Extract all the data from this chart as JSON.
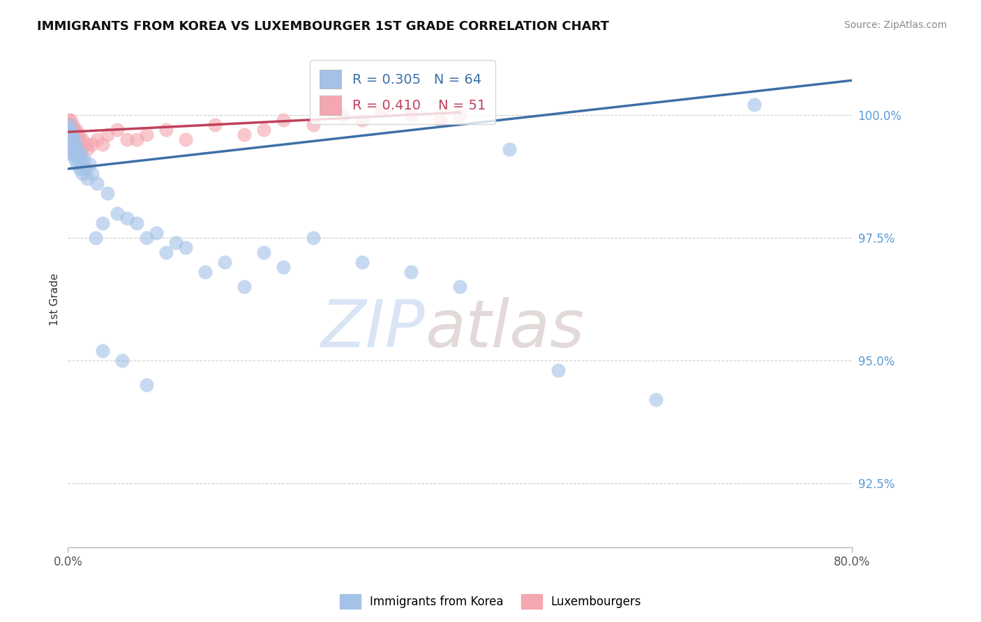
{
  "title": "IMMIGRANTS FROM KOREA VS LUXEMBOURGER 1ST GRADE CORRELATION CHART",
  "source_text": "Source: ZipAtlas.com",
  "ylabel": "1st Grade",
  "y_ticks": [
    92.5,
    95.0,
    97.5,
    100.0
  ],
  "y_tick_labels": [
    "92.5%",
    "95.0%",
    "97.5%",
    "100.0%"
  ],
  "x_min": 0.0,
  "x_max": 80.0,
  "y_min": 91.2,
  "y_max": 101.3,
  "korea_scatter_color": "#a4c2e8",
  "lux_scatter_color": "#f4a7b0",
  "korea_line_color": "#3d6fa8",
  "lux_line_color": "#c0405a",
  "legend_r_korea": "R = 0.305",
  "legend_n_korea": "N = 64",
  "legend_r_lux": "R = 0.410",
  "legend_n_lux": "N = 51",
  "legend_label_korea": "Immigrants from Korea",
  "legend_label_lux": "Luxembourgers",
  "korea_line_x0": 0.0,
  "korea_line_y0": 98.9,
  "korea_line_x1": 80.0,
  "korea_line_y1": 100.7,
  "lux_line_x0": 0.0,
  "lux_line_y0": 99.65,
  "lux_line_x1": 40.0,
  "lux_line_y1": 100.05,
  "korea_x": [
    0.05,
    0.08,
    0.1,
    0.12,
    0.15,
    0.18,
    0.2,
    0.22,
    0.25,
    0.28,
    0.3,
    0.35,
    0.38,
    0.4,
    0.42,
    0.45,
    0.5,
    0.55,
    0.58,
    0.6,
    0.65,
    0.7,
    0.75,
    0.8,
    0.9,
    1.0,
    1.1,
    1.2,
    1.3,
    1.4,
    1.5,
    1.6,
    1.8,
    2.0,
    2.2,
    2.5,
    2.8,
    3.0,
    3.5,
    4.0,
    5.0,
    6.0,
    7.0,
    8.0,
    9.0,
    10.0,
    11.0,
    12.0,
    14.0,
    16.0,
    18.0,
    20.0,
    22.0,
    25.0,
    30.0,
    35.0,
    40.0,
    50.0,
    60.0,
    70.0,
    3.5,
    5.5,
    8.0,
    45.0
  ],
  "korea_y": [
    99.5,
    99.3,
    99.7,
    99.4,
    99.8,
    99.5,
    99.6,
    99.4,
    99.7,
    99.5,
    99.3,
    99.6,
    99.2,
    99.5,
    99.4,
    99.3,
    99.6,
    99.4,
    99.2,
    99.5,
    99.3,
    99.1,
    99.4,
    99.2,
    99.0,
    99.3,
    99.1,
    98.9,
    99.2,
    99.0,
    98.8,
    99.1,
    98.9,
    98.7,
    99.0,
    98.8,
    97.5,
    98.6,
    97.8,
    98.4,
    98.0,
    97.9,
    97.8,
    97.5,
    97.6,
    97.2,
    97.4,
    97.3,
    96.8,
    97.0,
    96.5,
    97.2,
    96.9,
    97.5,
    97.0,
    96.8,
    96.5,
    94.8,
    94.2,
    100.2,
    95.2,
    95.0,
    94.5,
    99.3
  ],
  "lux_x": [
    0.05,
    0.08,
    0.1,
    0.12,
    0.15,
    0.18,
    0.2,
    0.22,
    0.25,
    0.28,
    0.3,
    0.32,
    0.35,
    0.38,
    0.4,
    0.45,
    0.5,
    0.55,
    0.6,
    0.65,
    0.7,
    0.8,
    0.9,
    1.0,
    1.1,
    1.2,
    1.3,
    1.5,
    1.8,
    2.0,
    2.5,
    3.0,
    4.0,
    5.0,
    6.0,
    8.0,
    10.0,
    12.0,
    15.0,
    18.0,
    20.0,
    22.0,
    25.0,
    28.0,
    30.0,
    32.0,
    35.0,
    38.0,
    40.0,
    3.5,
    7.0
  ],
  "lux_y": [
    99.6,
    99.4,
    99.8,
    99.6,
    99.9,
    99.7,
    99.8,
    99.6,
    99.9,
    99.7,
    99.6,
    99.8,
    99.5,
    99.7,
    99.6,
    99.8,
    99.7,
    99.5,
    99.7,
    99.6,
    99.5,
    99.7,
    99.5,
    99.4,
    99.6,
    99.5,
    99.3,
    99.5,
    99.4,
    99.3,
    99.4,
    99.5,
    99.6,
    99.7,
    99.5,
    99.6,
    99.7,
    99.5,
    99.8,
    99.6,
    99.7,
    99.9,
    99.8,
    100.0,
    99.9,
    100.1,
    100.0,
    99.9,
    100.0,
    99.4,
    99.5
  ]
}
